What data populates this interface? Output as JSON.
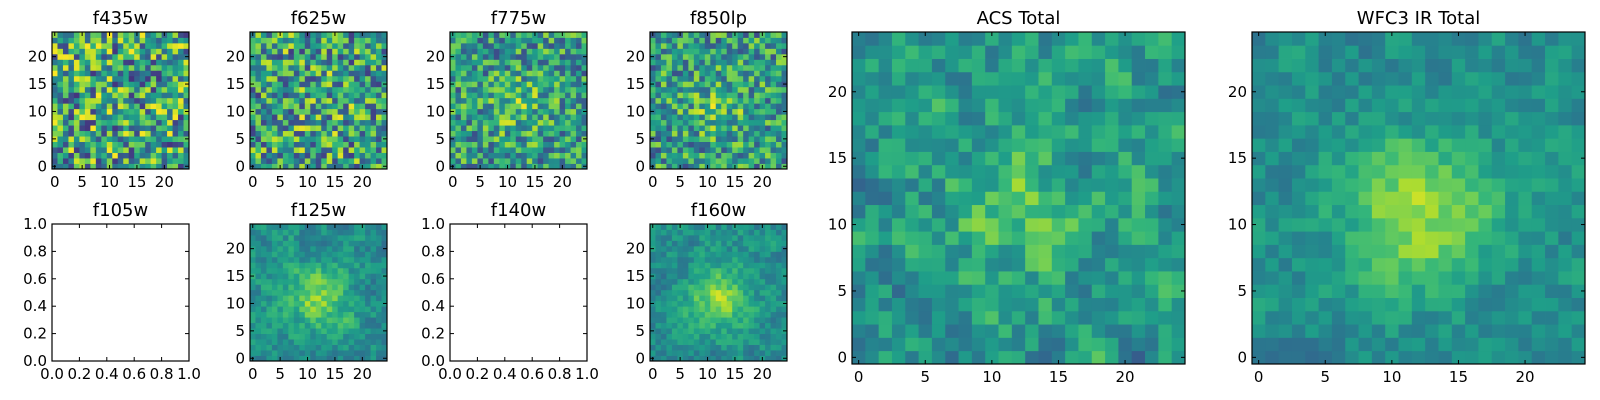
{
  "chart_data": [
    {
      "type": "heatmap",
      "title": "f435w",
      "grid_size": 25,
      "empty": false,
      "colormap": "viridis",
      "x_ticks": [
        "0",
        "5",
        "10",
        "15",
        "20"
      ],
      "y_ticks": [
        "0",
        "5",
        "10",
        "15",
        "20"
      ],
      "blob": 0.0,
      "seed": 11
    },
    {
      "type": "heatmap",
      "title": "f625w",
      "grid_size": 25,
      "empty": false,
      "colormap": "viridis",
      "x_ticks": [
        "0",
        "5",
        "10",
        "15",
        "20"
      ],
      "y_ticks": [
        "0",
        "5",
        "10",
        "15",
        "20"
      ],
      "blob": 0.1,
      "seed": 23
    },
    {
      "type": "heatmap",
      "title": "f775w",
      "grid_size": 25,
      "empty": false,
      "colormap": "viridis",
      "x_ticks": [
        "0",
        "5",
        "10",
        "15",
        "20"
      ],
      "y_ticks": [
        "0",
        "5",
        "10",
        "15",
        "20"
      ],
      "blob": 0.3,
      "seed": 37
    },
    {
      "type": "heatmap",
      "title": "f850lp",
      "grid_size": 25,
      "empty": false,
      "colormap": "viridis",
      "x_ticks": [
        "0",
        "5",
        "10",
        "15",
        "20"
      ],
      "y_ticks": [
        "0",
        "5",
        "10",
        "15",
        "20"
      ],
      "blob": 0.3,
      "seed": 41
    },
    {
      "type": "heatmap",
      "title": "f105w",
      "empty": true,
      "x_ticks": [
        "0.0",
        "0.2",
        "0.4",
        "0.6",
        "0.8",
        "1.0"
      ],
      "y_ticks": [
        "0.0",
        "0.2",
        "0.4",
        "0.6",
        "0.8",
        "1.0"
      ]
    },
    {
      "type": "heatmap",
      "title": "f125w",
      "grid_size": 25,
      "empty": false,
      "colormap": "viridis",
      "x_ticks": [
        "0",
        "5",
        "10",
        "15",
        "20"
      ],
      "y_ticks": [
        "0",
        "5",
        "10",
        "15",
        "20"
      ],
      "blob": 0.55,
      "seed": 53
    },
    {
      "type": "heatmap",
      "title": "f140w",
      "empty": true,
      "x_ticks": [
        "0.0",
        "0.2",
        "0.4",
        "0.6",
        "0.8",
        "1.0"
      ],
      "y_ticks": [
        "0.0",
        "0.2",
        "0.4",
        "0.6",
        "0.8",
        "1.0"
      ]
    },
    {
      "type": "heatmap",
      "title": "f160w",
      "grid_size": 25,
      "empty": false,
      "colormap": "viridis",
      "x_ticks": [
        "0",
        "5",
        "10",
        "15",
        "20"
      ],
      "y_ticks": [
        "0",
        "5",
        "10",
        "15",
        "20"
      ],
      "blob": 0.6,
      "seed": 67
    },
    {
      "type": "heatmap",
      "title": "ACS Total",
      "grid_size": 25,
      "empty": false,
      "colormap": "viridis",
      "x_ticks": [
        "0",
        "5",
        "10",
        "15",
        "20"
      ],
      "y_ticks": [
        "0",
        "5",
        "10",
        "15",
        "20"
      ],
      "blob": 0.35,
      "seed": 79
    },
    {
      "type": "heatmap",
      "title": "WFC3 IR Total",
      "grid_size": 25,
      "empty": false,
      "colormap": "viridis",
      "x_ticks": [
        "0",
        "5",
        "10",
        "15",
        "20"
      ],
      "y_ticks": [
        "0",
        "5",
        "10",
        "15",
        "20"
      ],
      "blob": 0.65,
      "seed": 97
    }
  ]
}
